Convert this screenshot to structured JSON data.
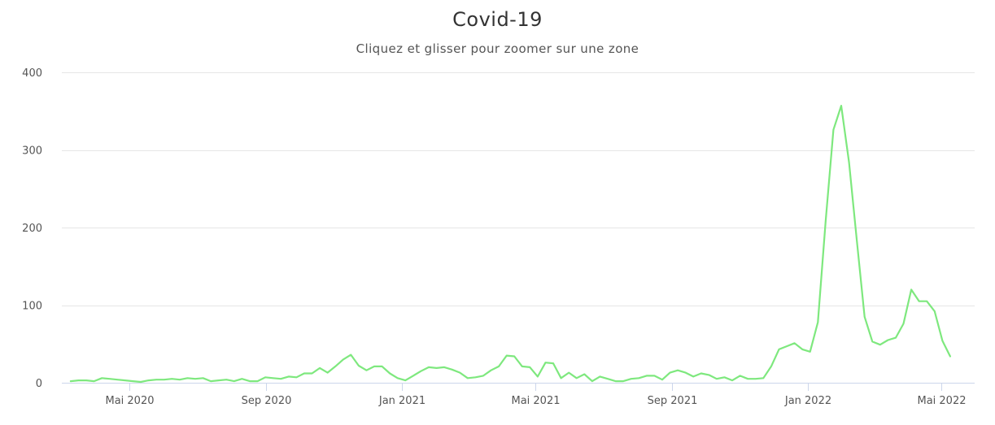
{
  "chart_data": {
    "type": "line",
    "title": "Covid-19",
    "subtitle": "Cliquez et glisser pour zoomer sur une zone",
    "xlabel": "",
    "ylabel": "",
    "ylim": [
      0,
      400
    ],
    "yticks": [
      0,
      100,
      200,
      300,
      400
    ],
    "xlim": [
      "2020-03-01",
      "2022-05-31"
    ],
    "xticks": [
      {
        "date": "2020-05-01",
        "label": "Mai 2020"
      },
      {
        "date": "2020-09-01",
        "label": "Sep 2020"
      },
      {
        "date": "2021-01-01",
        "label": "Jan 2021"
      },
      {
        "date": "2021-05-01",
        "label": "Mai 2021"
      },
      {
        "date": "2021-09-01",
        "label": "Sep 2021"
      },
      {
        "date": "2022-01-01",
        "label": "Jan 2022"
      },
      {
        "date": "2022-05-01",
        "label": "Mai 2022"
      }
    ],
    "grid": true,
    "legend": "none",
    "series_color": "#7ee87e",
    "series": [
      {
        "values": [
          [
            "2020-03-09",
            2
          ],
          [
            "2020-03-16",
            3
          ],
          [
            "2020-03-23",
            3
          ],
          [
            "2020-03-30",
            2
          ],
          [
            "2020-04-06",
            6
          ],
          [
            "2020-04-13",
            5
          ],
          [
            "2020-04-20",
            4
          ],
          [
            "2020-04-27",
            3
          ],
          [
            "2020-05-04",
            2
          ],
          [
            "2020-05-11",
            1
          ],
          [
            "2020-05-18",
            3
          ],
          [
            "2020-05-25",
            4
          ],
          [
            "2020-06-01",
            4
          ],
          [
            "2020-06-08",
            5
          ],
          [
            "2020-06-15",
            4
          ],
          [
            "2020-06-22",
            6
          ],
          [
            "2020-06-29",
            5
          ],
          [
            "2020-07-06",
            6
          ],
          [
            "2020-07-13",
            2
          ],
          [
            "2020-07-20",
            3
          ],
          [
            "2020-07-27",
            4
          ],
          [
            "2020-08-03",
            2
          ],
          [
            "2020-08-10",
            5
          ],
          [
            "2020-08-17",
            2
          ],
          [
            "2020-08-24",
            2
          ],
          [
            "2020-08-31",
            7
          ],
          [
            "2020-09-07",
            6
          ],
          [
            "2020-09-14",
            5
          ],
          [
            "2020-09-21",
            8
          ],
          [
            "2020-09-28",
            7
          ],
          [
            "2020-10-05",
            12
          ],
          [
            "2020-10-12",
            12
          ],
          [
            "2020-10-19",
            19
          ],
          [
            "2020-10-26",
            13
          ],
          [
            "2020-11-02",
            21
          ],
          [
            "2020-11-09",
            30
          ],
          [
            "2020-11-16",
            36
          ],
          [
            "2020-11-23",
            22
          ],
          [
            "2020-11-30",
            16
          ],
          [
            "2020-12-07",
            21
          ],
          [
            "2020-12-14",
            21
          ],
          [
            "2020-12-21",
            12
          ],
          [
            "2020-12-28",
            6
          ],
          [
            "2021-01-04",
            3
          ],
          [
            "2021-01-11",
            9
          ],
          [
            "2021-01-18",
            15
          ],
          [
            "2021-01-25",
            20
          ],
          [
            "2021-02-01",
            19
          ],
          [
            "2021-02-08",
            20
          ],
          [
            "2021-02-15",
            17
          ],
          [
            "2021-02-22",
            13
          ],
          [
            "2021-03-01",
            6
          ],
          [
            "2021-03-08",
            7
          ],
          [
            "2021-03-15",
            9
          ],
          [
            "2021-03-22",
            16
          ],
          [
            "2021-03-29",
            21
          ],
          [
            "2021-04-05",
            35
          ],
          [
            "2021-04-12",
            34
          ],
          [
            "2021-04-19",
            21
          ],
          [
            "2021-04-26",
            20
          ],
          [
            "2021-05-03",
            8
          ],
          [
            "2021-05-10",
            26
          ],
          [
            "2021-05-17",
            25
          ],
          [
            "2021-05-24",
            6
          ],
          [
            "2021-05-31",
            13
          ],
          [
            "2021-06-07",
            6
          ],
          [
            "2021-06-14",
            11
          ],
          [
            "2021-06-21",
            2
          ],
          [
            "2021-06-28",
            8
          ],
          [
            "2021-07-05",
            5
          ],
          [
            "2021-07-12",
            2
          ],
          [
            "2021-07-19",
            2
          ],
          [
            "2021-07-26",
            5
          ],
          [
            "2021-08-02",
            6
          ],
          [
            "2021-08-09",
            9
          ],
          [
            "2021-08-16",
            9
          ],
          [
            "2021-08-23",
            4
          ],
          [
            "2021-08-30",
            13
          ],
          [
            "2021-09-06",
            16
          ],
          [
            "2021-09-13",
            13
          ],
          [
            "2021-09-20",
            8
          ],
          [
            "2021-09-27",
            12
          ],
          [
            "2021-10-04",
            10
          ],
          [
            "2021-10-11",
            5
          ],
          [
            "2021-10-18",
            7
          ],
          [
            "2021-10-25",
            3
          ],
          [
            "2021-11-01",
            9
          ],
          [
            "2021-11-08",
            5
          ],
          [
            "2021-11-15",
            5
          ],
          [
            "2021-11-22",
            6
          ],
          [
            "2021-11-29",
            21
          ],
          [
            "2021-12-06",
            43
          ],
          [
            "2021-12-13",
            47
          ],
          [
            "2021-12-20",
            51
          ],
          [
            "2021-12-27",
            43
          ],
          [
            "2022-01-03",
            40
          ],
          [
            "2022-01-10",
            78
          ],
          [
            "2022-01-17",
            209
          ],
          [
            "2022-01-24",
            326
          ],
          [
            "2022-01-31",
            357
          ],
          [
            "2022-02-07",
            284
          ],
          [
            "2022-02-14",
            184
          ],
          [
            "2022-02-21",
            85
          ],
          [
            "2022-02-28",
            53
          ],
          [
            "2022-03-07",
            49
          ],
          [
            "2022-03-14",
            55
          ],
          [
            "2022-03-21",
            58
          ],
          [
            "2022-03-28",
            76
          ],
          [
            "2022-04-04",
            120
          ],
          [
            "2022-04-11",
            105
          ],
          [
            "2022-04-18",
            105
          ],
          [
            "2022-04-25",
            92
          ],
          [
            "2022-05-02",
            54
          ],
          [
            "2022-05-09",
            34
          ]
        ]
      }
    ]
  }
}
